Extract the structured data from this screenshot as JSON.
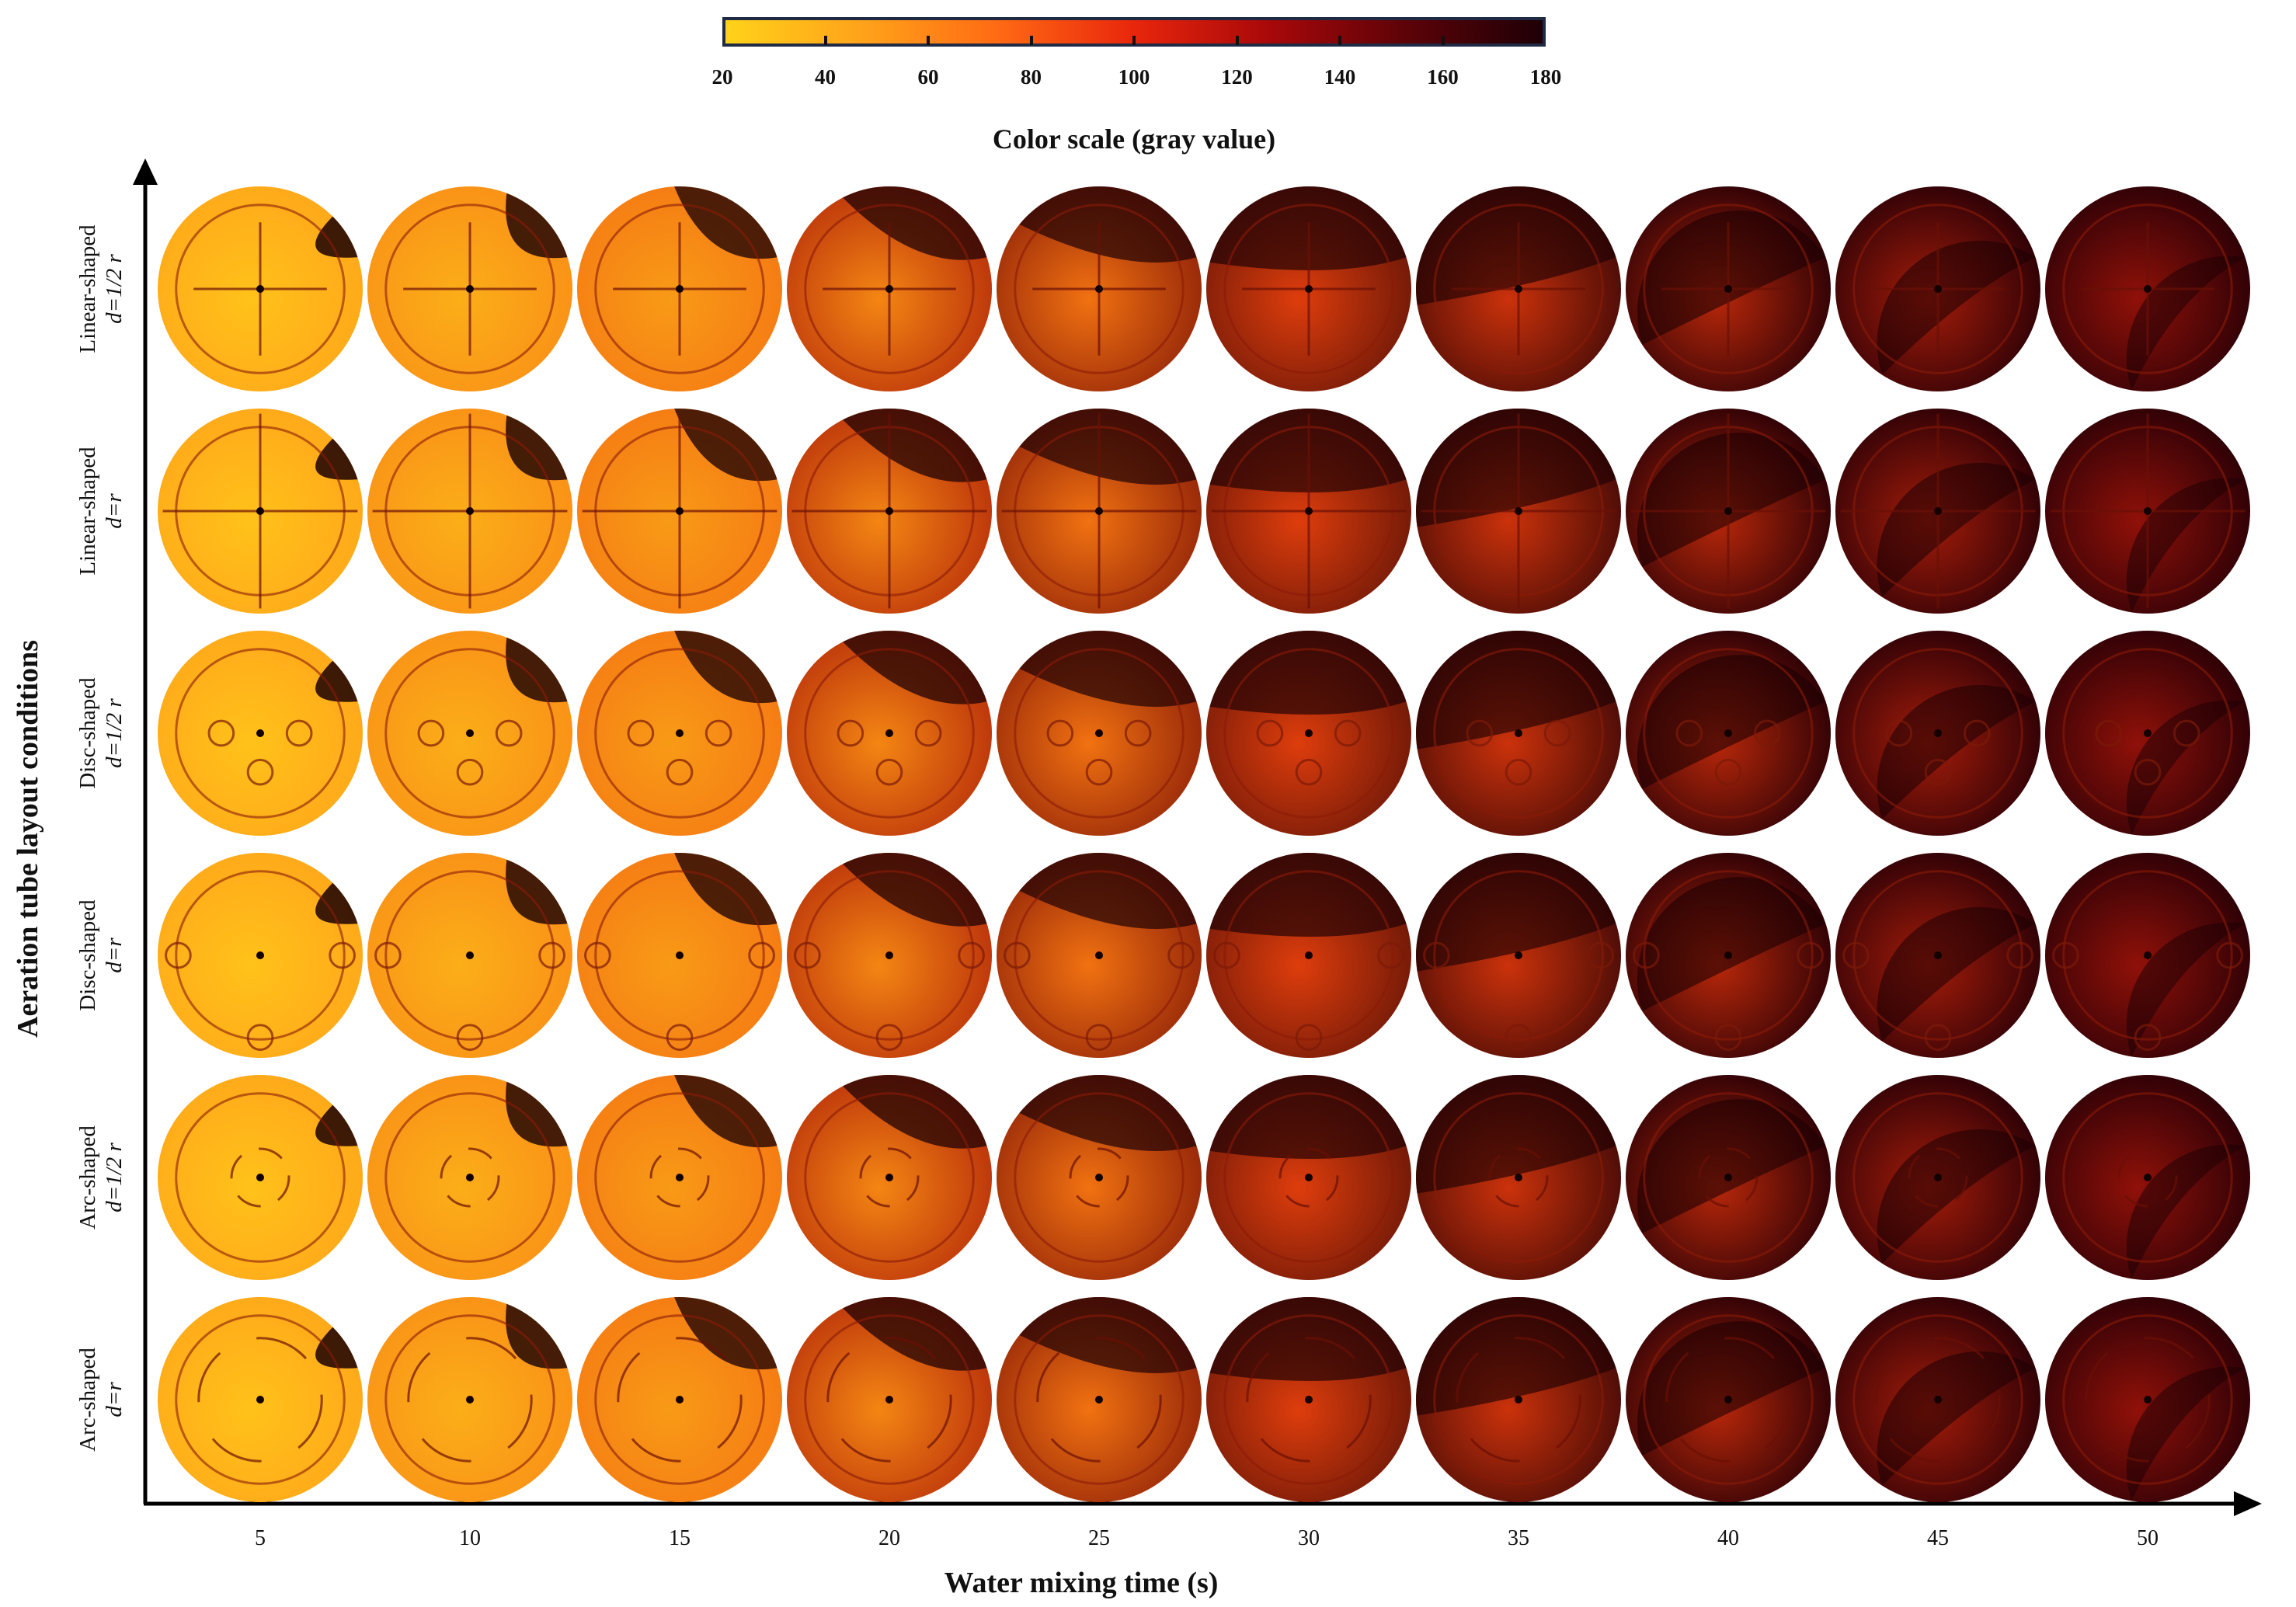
{
  "colorbar": {
    "title": "Color scale (gray value)",
    "min": 20,
    "max": 180,
    "ticks": [
      "20",
      "40",
      "60",
      "80",
      "100",
      "120",
      "140",
      "160",
      "180"
    ],
    "colors": [
      "#ffd21a",
      "#ffa31a",
      "#ff6a14",
      "#e8260c",
      "#a8080a",
      "#5c0308",
      "#1e0006"
    ]
  },
  "y_axis": {
    "title": "Aeration tube layout conditions",
    "rows": [
      {
        "name": "Linear-shaped",
        "sub": "d=1/2 r"
      },
      {
        "name": "Linear-shaped",
        "sub": "d=r"
      },
      {
        "name": "Disc-shaped",
        "sub": "d=1/2 r"
      },
      {
        "name": "Disc-shaped",
        "sub": "d=r"
      },
      {
        "name": "Arc-shaped",
        "sub": "d=1/2 r"
      },
      {
        "name": "Arc-shaped",
        "sub": "d=r"
      }
    ]
  },
  "x_axis": {
    "title": "Water mixing time (s)",
    "ticks": [
      "5",
      "10",
      "15",
      "20",
      "25",
      "30",
      "35",
      "40",
      "45",
      "50"
    ]
  }
}
